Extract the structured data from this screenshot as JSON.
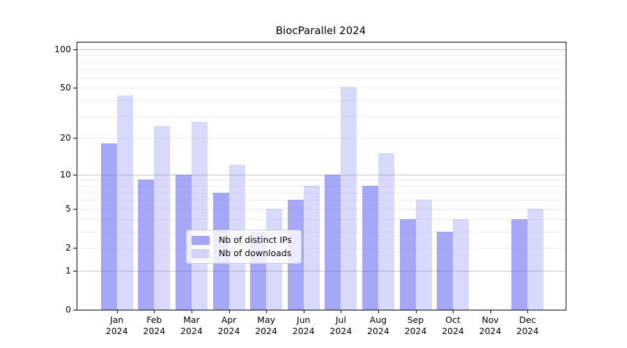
{
  "chart_data": {
    "type": "bar",
    "title": "BiocParallel 2024",
    "categories": [
      "Jan",
      "Feb",
      "Mar",
      "Apr",
      "May",
      "Jun",
      "Jul",
      "Aug",
      "Sep",
      "Oct",
      "Nov",
      "Dec"
    ],
    "year": "2024",
    "series": [
      {
        "name": "Nb of distinct IPs",
        "color": "rgba(95,95,240,0.55)",
        "values": [
          18,
          9,
          10,
          7,
          3,
          6,
          10,
          8,
          4,
          3,
          0,
          4
        ]
      },
      {
        "name": "Nb of downloads",
        "color": "rgba(95,95,240,0.24)",
        "values": [
          44,
          25,
          27,
          12,
          5,
          8,
          51,
          15,
          6,
          4,
          0,
          5
        ]
      }
    ],
    "yscale": "log1p",
    "ylim": [
      0,
      113
    ],
    "y_ticks": [
      0,
      1,
      2,
      5,
      10,
      20,
      50,
      100
    ],
    "y_minor_gridlines": [
      3,
      4,
      6,
      7,
      8,
      9,
      30,
      40,
      60,
      70,
      80,
      90
    ],
    "decade_gridlines": [
      1,
      10,
      100
    ],
    "grid": "on",
    "legend_position": "inside bottom-center",
    "xlabel": "",
    "ylabel": ""
  },
  "colors": {
    "grid_minor": "#ebebeb",
    "grid_major": "#c4c4c4",
    "spine": "#000000",
    "background": "#ffffff",
    "legend_border": "#cccccc"
  }
}
